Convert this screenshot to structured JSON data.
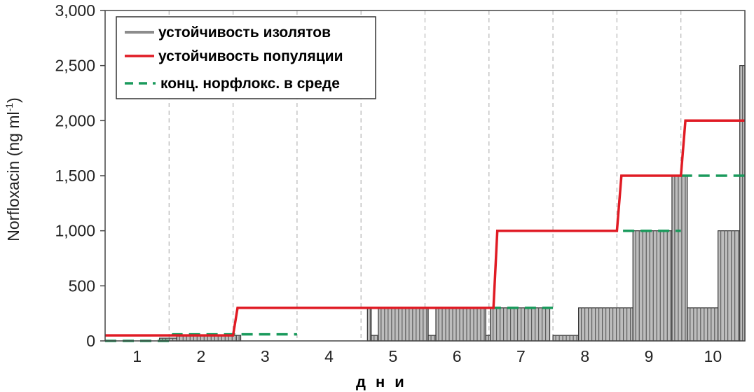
{
  "chart_data": {
    "type": "bar",
    "ylabel": "Norfloxacin (ng ml",
    "ylabel_superscript": "-1",
    "ylabel_suffix": ")",
    "xlabel": "дни",
    "ylim": [
      0,
      3000
    ],
    "xlim": [
      0.5,
      10.5
    ],
    "y_ticks": [
      0,
      500,
      1000,
      1500,
      2000,
      2500,
      3000
    ],
    "y_tick_labels": [
      "0",
      "500",
      "1,000",
      "1,500",
      "2,000",
      "2,500",
      "3,000"
    ],
    "x_ticks": [
      1,
      2,
      3,
      4,
      5,
      6,
      7,
      8,
      9,
      10
    ],
    "x_tick_labels": [
      "1",
      "2",
      "3",
      "4",
      "5",
      "6",
      "7",
      "8",
      "9",
      "10"
    ],
    "grid": "vertical dashed at day boundaries",
    "legend_position": "top-left",
    "series": [
      {
        "name": "устойчивость изолятов",
        "kind": "bars",
        "color": "#8c8c8c",
        "segments": [
          {
            "x0": 1.35,
            "x1": 1.62,
            "value": 25
          },
          {
            "x0": 1.62,
            "x1": 2.55,
            "value": 50
          },
          {
            "x0": 2.55,
            "x1": 2.62,
            "value": 50
          },
          {
            "x0": 4.6,
            "x1": 4.66,
            "value": 300
          },
          {
            "x0": 4.66,
            "x1": 4.77,
            "value": 50
          },
          {
            "x0": 4.77,
            "x1": 5.55,
            "value": 300
          },
          {
            "x0": 5.55,
            "x1": 5.67,
            "value": 50
          },
          {
            "x0": 5.67,
            "x1": 6.45,
            "value": 300
          },
          {
            "x0": 6.45,
            "x1": 6.52,
            "value": 50
          },
          {
            "x0": 6.52,
            "x1": 7.45,
            "value": 300
          },
          {
            "x0": 7.5,
            "x1": 7.9,
            "value": 50
          },
          {
            "x0": 7.9,
            "x1": 8.75,
            "value": 300
          },
          {
            "x0": 8.75,
            "x1": 9.36,
            "value": 1000
          },
          {
            "x0": 9.36,
            "x1": 9.6,
            "value": 1500
          },
          {
            "x0": 9.6,
            "x1": 10.08,
            "value": 300
          },
          {
            "x0": 10.08,
            "x1": 10.42,
            "value": 1000
          },
          {
            "x0": 10.42,
            "x1": 10.5,
            "value": 2500
          }
        ]
      },
      {
        "name": "устойчивость популяции",
        "kind": "line",
        "color": "#e01b24",
        "points": [
          [
            0.5,
            50
          ],
          [
            2.5,
            50
          ],
          [
            2.57,
            300
          ],
          [
            6.57,
            300
          ],
          [
            6.63,
            1000
          ],
          [
            8.5,
            1000
          ],
          [
            8.57,
            1500
          ],
          [
            9.5,
            1500
          ],
          [
            9.57,
            2000
          ],
          [
            10.5,
            2000
          ]
        ]
      },
      {
        "name": "конц. норфлокс. в среде",
        "kind": "line",
        "dashed": true,
        "color": "#1a9a5c",
        "segments": [
          [
            [
              0.5,
              0
            ],
            [
              1.5,
              0
            ],
            [
              1.56,
              60
            ],
            [
              3.5,
              60
            ]
          ],
          [
            [
              3.5,
              300
            ],
            [
              7.5,
              300
            ]
          ],
          [
            [
              7.5,
              1000
            ],
            [
              9.5,
              1000
            ]
          ],
          [
            [
              9.5,
              1500
            ],
            [
              10.5,
              1500
            ]
          ]
        ]
      }
    ]
  }
}
